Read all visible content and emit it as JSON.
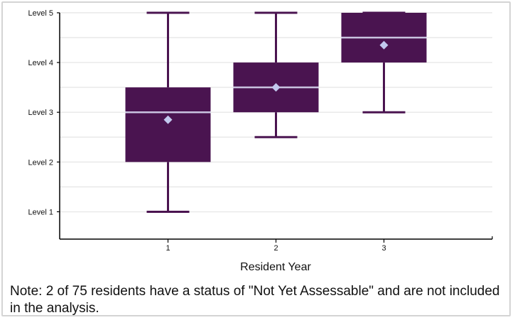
{
  "chart_data": {
    "type": "box",
    "x_categories": [
      "1",
      "2",
      "3"
    ],
    "y_tick_labels": [
      "Level 1",
      "Level 2",
      "Level 3",
      "Level 4",
      "Level 5"
    ],
    "y_tick_values": [
      1,
      2,
      3,
      4,
      5
    ],
    "ylim": [
      0.45,
      5.0
    ],
    "xlabel": "Resident Year",
    "grid": "horizontal",
    "boxes": [
      {
        "category": "1",
        "min": 1,
        "q1": 2,
        "median": 3,
        "q3": 3.5,
        "max": 5,
        "mean": 2.85
      },
      {
        "category": "2",
        "min": 2.5,
        "q1": 3,
        "median": 3.5,
        "q3": 4,
        "max": 5,
        "mean": 3.5
      },
      {
        "category": "3",
        "min": 3,
        "q1": 4,
        "median": 4.5,
        "q3": 5,
        "max": 5,
        "mean": 4.35
      }
    ],
    "colors": {
      "box_fill": "#4a1450",
      "whisker": "#4a1450",
      "median_line": "#c9c3e0",
      "mean_marker": "#c2c8ee",
      "grid": "#e9e9e9",
      "axis": "#000000"
    }
  },
  "note": "Note: 2 of 75 residents have a status of \"Not Yet Assessable\" and are not included in the analysis."
}
